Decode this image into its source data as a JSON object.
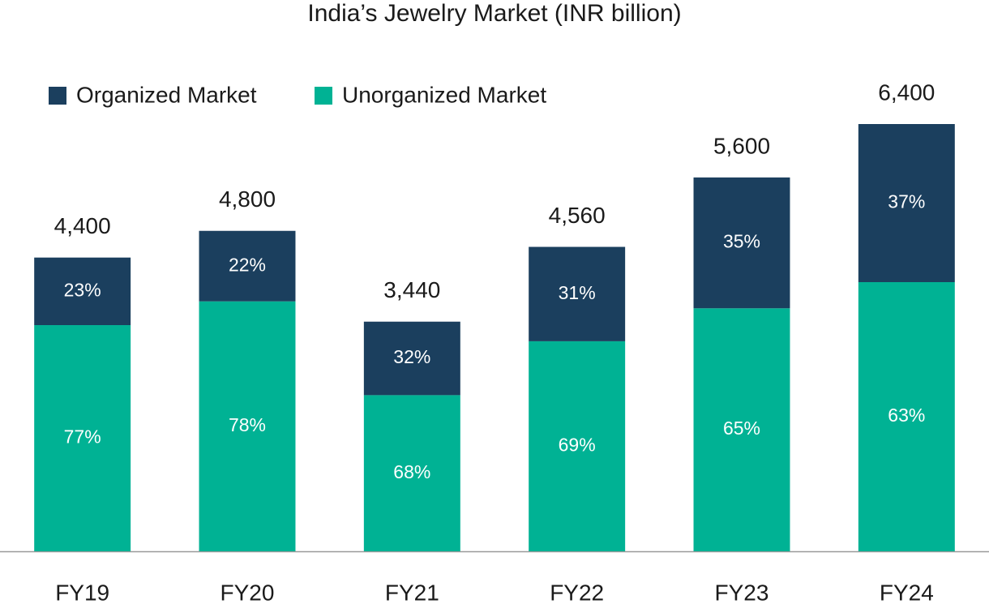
{
  "chart_data": {
    "type": "stacked_bar",
    "title": "India’s Jewelry Market (INR billion)",
    "categories": [
      "FY19",
      "FY20",
      "FY21",
      "FY22",
      "FY23",
      "FY24"
    ],
    "series": [
      {
        "name": "Organized Market",
        "color": "#1b3f5e",
        "values": [
          23,
          22,
          32,
          31,
          35,
          37
        ],
        "value_labels": [
          "23%",
          "22%",
          "32%",
          "31%",
          "35%",
          "37%"
        ]
      },
      {
        "name": "Unorganized Market",
        "color": "#00b294",
        "values": [
          77,
          78,
          68,
          69,
          65,
          63
        ],
        "value_labels": [
          "77%",
          "78%",
          "68%",
          "69%",
          "65%",
          "63%"
        ]
      }
    ],
    "totals": {
      "values": [
        4400,
        4800,
        3440,
        4560,
        5600,
        6400
      ],
      "value_labels": [
        "4,400",
        "4,800",
        "3,440",
        "4,560",
        "5,600",
        "6,400"
      ]
    },
    "legend": "top-left"
  }
}
